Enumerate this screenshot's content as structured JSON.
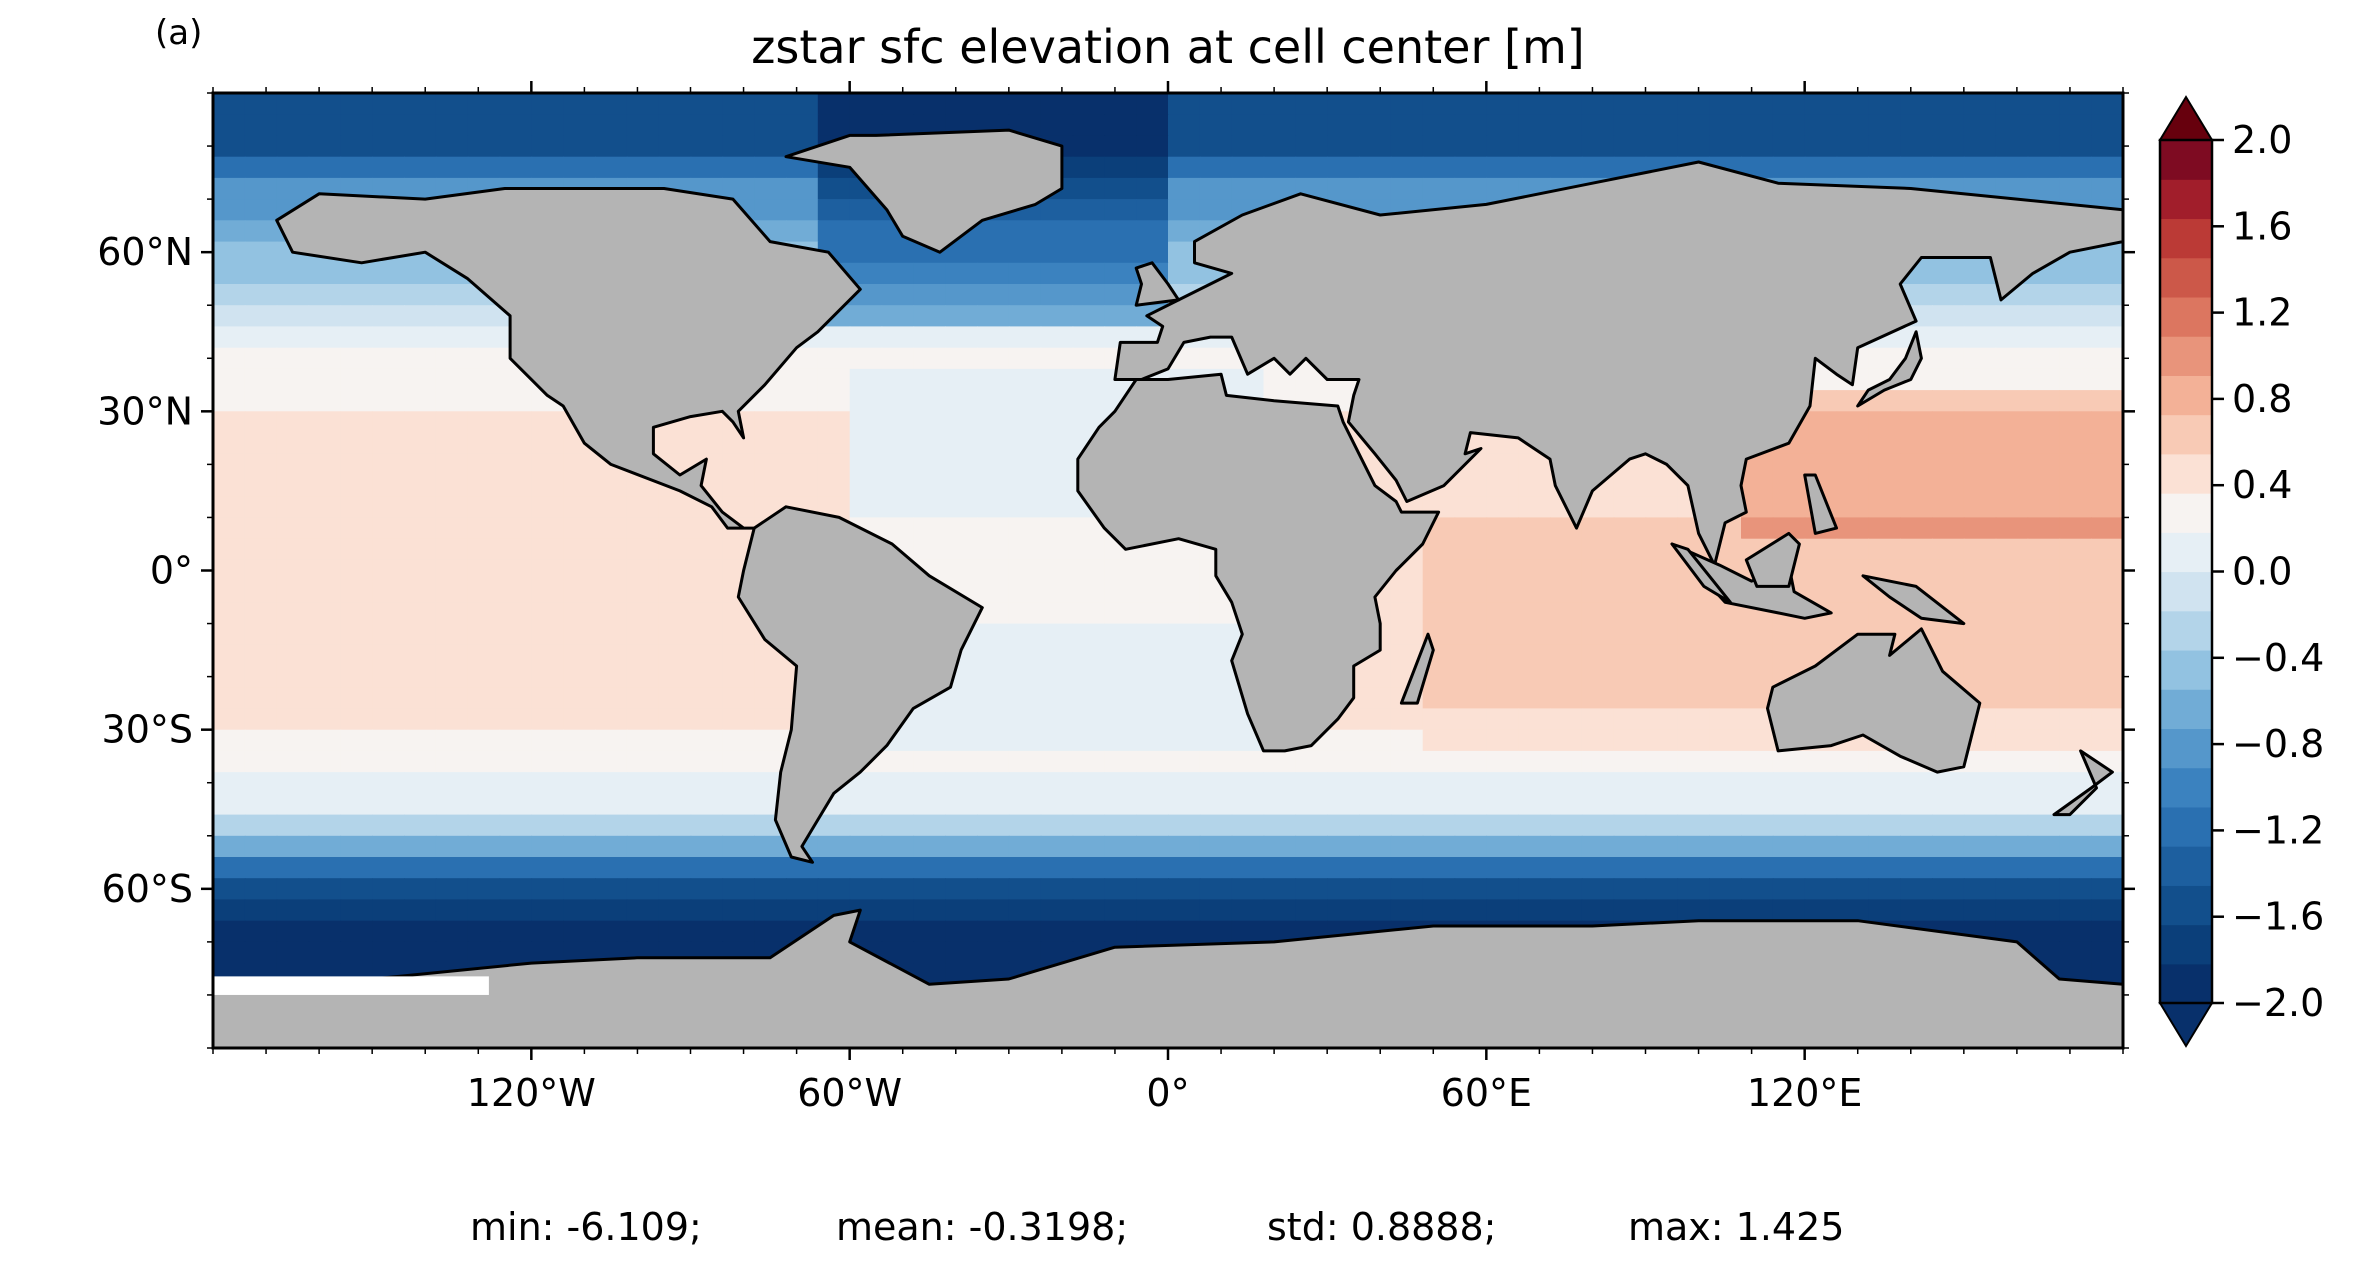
{
  "panel_label": "(a)",
  "title": "zstar sfc elevation at cell center [m]",
  "map": {
    "projection": "PlateCarree",
    "lon_range": [
      -180,
      180
    ],
    "lat_range": [
      -90,
      90
    ],
    "land_color": "#b4b4b4",
    "ice_color": "#ffffff",
    "coastline_color": "#000000",
    "lon_ticks": [
      {
        "value": -120,
        "label": "120°W"
      },
      {
        "value": -60,
        "label": "60°W"
      },
      {
        "value": 0,
        "label": "0°"
      },
      {
        "value": 60,
        "label": "60°E"
      },
      {
        "value": 120,
        "label": "120°E"
      }
    ],
    "lat_ticks": [
      {
        "value": 60,
        "label": "60°N"
      },
      {
        "value": 30,
        "label": "30°N"
      },
      {
        "value": 0,
        "label": "0°"
      },
      {
        "value": -30,
        "label": "30°S"
      },
      {
        "value": -60,
        "label": "60°S"
      }
    ]
  },
  "colorbar": {
    "colormap": "RdBu_r",
    "range": [
      -2.0,
      2.0
    ],
    "extend": "both",
    "levels": 22,
    "tick_labels": [
      {
        "value": 2.0,
        "label": "2.0"
      },
      {
        "value": 1.6,
        "label": "1.6"
      },
      {
        "value": 1.2,
        "label": "1.2"
      },
      {
        "value": 0.8,
        "label": "0.8"
      },
      {
        "value": 0.4,
        "label": "0.4"
      },
      {
        "value": 0.0,
        "label": "0.0"
      },
      {
        "value": -0.4,
        "label": "−0.4"
      },
      {
        "value": -0.8,
        "label": "−0.8"
      },
      {
        "value": -1.2,
        "label": "−1.2"
      },
      {
        "value": -1.6,
        "label": "−1.6"
      },
      {
        "value": -2.0,
        "label": "−2.0"
      }
    ]
  },
  "stats": {
    "min": "min: -6.109;",
    "mean": "mean: -0.3198;",
    "std": "std: 0.8888;",
    "max": "max: 1.425"
  }
}
